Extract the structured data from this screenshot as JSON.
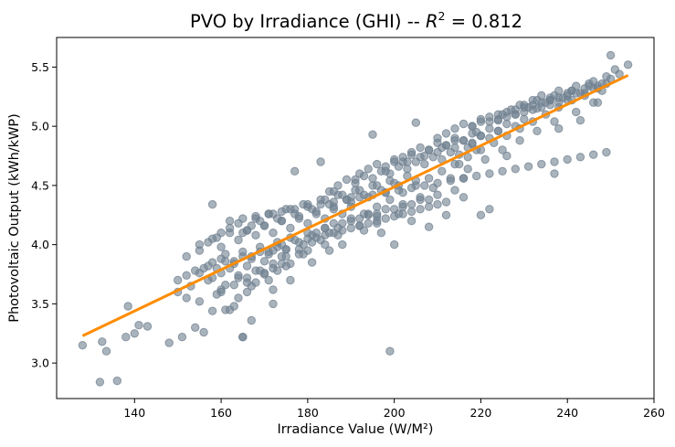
{
  "chart_data": {
    "type": "scatter",
    "title": "PVO by Irradiance (GHI) -- ",
    "title_r2_symbol": "R",
    "title_r2_exponent": "2",
    "title_r2_value": " = 0.812",
    "xlabel": "Irradiance Value (W/M²)",
    "ylabel": "Photovoltaic Output (kWh/kWP)",
    "xlim": [
      122,
      260
    ],
    "ylim": [
      2.7,
      5.75
    ],
    "x_ticks": [
      140,
      160,
      180,
      200,
      220,
      240,
      260
    ],
    "y_ticks": [
      3.0,
      3.5,
      4.0,
      4.5,
      5.0,
      5.5
    ],
    "grid": false,
    "point_color": "#708090",
    "fit_color": "#ff8c00",
    "fit_line": {
      "x": [
        128,
        254
      ],
      "y": [
        3.23,
        5.43
      ]
    },
    "points": {
      "x": [
        128,
        132,
        132.5,
        133.5,
        136,
        138,
        138.5,
        140,
        141,
        143,
        148,
        151,
        154,
        156,
        158,
        162,
        163,
        165,
        167,
        172,
        150,
        152,
        153,
        155,
        157,
        159,
        160,
        161,
        164,
        166,
        168,
        170,
        171,
        173,
        175,
        158,
        160,
        162,
        164,
        166,
        168,
        170,
        172,
        174,
        176,
        178,
        180,
        156,
        158,
        160,
        161,
        163,
        165,
        167,
        169,
        171,
        173,
        175,
        177,
        179,
        181,
        183,
        185,
        150,
        152,
        154,
        155,
        157,
        159,
        161,
        163,
        165,
        167,
        169,
        171,
        173,
        175,
        155,
        157,
        159,
        160,
        162,
        164,
        166,
        168,
        170,
        172,
        174,
        176,
        178,
        180,
        182,
        184,
        186,
        188,
        190,
        158,
        160,
        162,
        164,
        166,
        168,
        170,
        172,
        174,
        176,
        178,
        180,
        182,
        184,
        186,
        188,
        190,
        192,
        194,
        196,
        198,
        200,
        165,
        167,
        169,
        171,
        173,
        175,
        177,
        179,
        181,
        183,
        185,
        187,
        189,
        191,
        193,
        195,
        197,
        199,
        201,
        203,
        205,
        172,
        174,
        176,
        178,
        180,
        182,
        184,
        186,
        188,
        190,
        192,
        194,
        196,
        198,
        200,
        202,
        204,
        206,
        208,
        210,
        180,
        182,
        184,
        186,
        188,
        190,
        192,
        194,
        196,
        198,
        200,
        202,
        204,
        206,
        208,
        210,
        212,
        214,
        216,
        185,
        187,
        189,
        191,
        193,
        195,
        197,
        199,
        201,
        203,
        205,
        207,
        209,
        211,
        213,
        215,
        217,
        219,
        192,
        194,
        196,
        198,
        200,
        202,
        204,
        206,
        208,
        210,
        212,
        214,
        216,
        218,
        220,
        222,
        224,
        200,
        202,
        204,
        206,
        208,
        210,
        212,
        214,
        216,
        218,
        220,
        222,
        224,
        226,
        228,
        230,
        210,
        212,
        214,
        216,
        218,
        220,
        222,
        224,
        226,
        228,
        230,
        232,
        234,
        236,
        238,
        240,
        218,
        220,
        222,
        224,
        226,
        228,
        230,
        232,
        234,
        236,
        238,
        240,
        242,
        244,
        246,
        248,
        225,
        227,
        229,
        231,
        233,
        235,
        237,
        239,
        241,
        243,
        245,
        247,
        249,
        230,
        232,
        234,
        236,
        238,
        240,
        242,
        244,
        246,
        248,
        250,
        252,
        254,
        160,
        163,
        166,
        169,
        172,
        175,
        178,
        181,
        184,
        187,
        190,
        193,
        196,
        199,
        202,
        205,
        208,
        211,
        214,
        217,
        220,
        223,
        226,
        229,
        232,
        235,
        238,
        241,
        244,
        247,
        162,
        165,
        168,
        171,
        174,
        177,
        180,
        183,
        186,
        189,
        192,
        195,
        198,
        201,
        204,
        207,
        210,
        213,
        216,
        219,
        222,
        225,
        228,
        231,
        234,
        237,
        240,
        243,
        246,
        249,
        165,
        199,
        161,
        164,
        167,
        152,
        155,
        158,
        177,
        183,
        195,
        205,
        215,
        220,
        222,
        237,
        216,
        218,
        190,
        194,
        197,
        200,
        204,
        208,
        212,
        226,
        238,
        243,
        247,
        250,
        172,
        176,
        181,
        185,
        188,
        193,
        196,
        201,
        186,
        191,
        198,
        203,
        207,
        211,
        214,
        219,
        224,
        228,
        233,
        236,
        241,
        245,
        249,
        251,
        166,
        170,
        174,
        179,
        184,
        187,
        192,
        196,
        202,
        206,
        209,
        213,
        217,
        221,
        225,
        229,
        233,
        237,
        242,
        246
      ],
      "y": [
        3.15,
        2.84,
        3.18,
        3.1,
        2.85,
        3.22,
        3.48,
        3.25,
        3.32,
        3.31,
        3.17,
        3.22,
        3.3,
        3.26,
        3.44,
        3.45,
        3.48,
        3.22,
        3.36,
        3.5,
        3.6,
        3.55,
        3.65,
        3.52,
        3.7,
        3.58,
        3.62,
        3.66,
        3.72,
        3.6,
        3.68,
        3.75,
        3.7,
        3.78,
        3.82,
        3.72,
        3.76,
        3.8,
        3.74,
        3.82,
        3.78,
        3.86,
        3.8,
        3.9,
        3.84,
        3.92,
        3.95,
        3.8,
        3.85,
        3.88,
        3.92,
        3.86,
        3.94,
        3.9,
        3.98,
        3.94,
        4.02,
        3.96,
        4.04,
        4.0,
        4.08,
        4.04,
        4.1,
        3.7,
        3.74,
        3.78,
        3.76,
        3.82,
        3.8,
        3.86,
        3.84,
        3.9,
        3.88,
        3.94,
        3.92,
        3.98,
        3.96,
        3.95,
        4.02,
        4.06,
        3.98,
        4.1,
        4.04,
        4.12,
        4.08,
        4.16,
        4.1,
        4.2,
        4.14,
        4.22,
        4.18,
        4.26,
        4.22,
        4.3,
        4.26,
        4.32,
        4.05,
        4.1,
        4.14,
        4.18,
        4.12,
        4.22,
        4.16,
        4.26,
        4.2,
        4.3,
        4.24,
        4.34,
        4.28,
        4.38,
        4.32,
        4.42,
        4.36,
        4.46,
        4.4,
        4.5,
        4.44,
        4.52,
        4.1,
        4.16,
        4.2,
        4.26,
        4.22,
        4.3,
        4.26,
        4.34,
        4.3,
        4.38,
        4.34,
        4.42,
        4.38,
        4.46,
        4.42,
        4.5,
        4.46,
        4.54,
        4.5,
        4.58,
        4.54,
        3.95,
        4.0,
        4.06,
        4.02,
        4.1,
        4.06,
        4.14,
        4.1,
        4.18,
        4.14,
        4.22,
        4.18,
        4.26,
        4.22,
        4.3,
        4.26,
        4.34,
        4.3,
        4.38,
        4.34,
        4.05,
        4.1,
        4.14,
        4.18,
        4.12,
        4.22,
        4.16,
        4.26,
        4.2,
        4.3,
        4.24,
        4.34,
        4.28,
        4.38,
        4.32,
        4.42,
        4.36,
        4.46,
        4.4,
        4.45,
        4.5,
        4.55,
        4.52,
        4.58,
        4.56,
        4.62,
        4.6,
        4.66,
        4.64,
        4.7,
        4.68,
        4.74,
        4.72,
        4.78,
        4.76,
        4.82,
        4.8,
        4.6,
        4.64,
        4.68,
        4.66,
        4.72,
        4.7,
        4.76,
        4.74,
        4.8,
        4.78,
        4.84,
        4.82,
        4.88,
        4.86,
        4.92,
        4.9,
        4.96,
        4.7,
        4.74,
        4.78,
        4.82,
        4.8,
        4.86,
        4.84,
        4.9,
        4.88,
        4.94,
        4.92,
        4.98,
        4.96,
        5.02,
        5.0,
        5.06,
        4.9,
        4.94,
        4.98,
        5.02,
        5.0,
        5.06,
        5.04,
        5.1,
        5.08,
        5.14,
        5.12,
        5.18,
        5.16,
        5.22,
        5.2,
        5.26,
        5.0,
        5.04,
        5.08,
        5.06,
        5.12,
        5.1,
        5.16,
        5.14,
        5.2,
        5.18,
        5.24,
        5.22,
        5.28,
        5.26,
        5.32,
        5.3,
        5.1,
        5.14,
        5.18,
        5.16,
        5.22,
        5.2,
        5.26,
        5.24,
        5.3,
        5.28,
        5.34,
        5.32,
        5.36,
        5.18,
        5.22,
        5.26,
        5.24,
        5.3,
        5.28,
        5.34,
        5.32,
        5.38,
        5.36,
        5.4,
        5.44,
        5.52,
        3.6,
        3.66,
        3.72,
        3.78,
        3.84,
        3.9,
        3.96,
        4.02,
        4.08,
        4.14,
        4.2,
        4.26,
        4.32,
        4.38,
        4.44,
        4.5,
        4.56,
        4.62,
        4.68,
        4.74,
        4.8,
        4.86,
        4.92,
        4.98,
        5.04,
        5.1,
        5.16,
        5.22,
        5.28,
        5.34,
        4.2,
        4.22,
        4.24,
        4.26,
        4.28,
        4.3,
        4.32,
        4.34,
        4.36,
        4.38,
        4.4,
        4.42,
        4.44,
        4.46,
        4.48,
        4.5,
        4.52,
        4.54,
        4.56,
        4.58,
        4.6,
        4.62,
        4.64,
        4.66,
        4.68,
        4.7,
        4.72,
        4.74,
        4.76,
        4.78,
        3.22,
        3.1,
        3.45,
        3.55,
        3.65,
        3.9,
        4.0,
        4.34,
        4.62,
        4.7,
        4.93,
        5.03,
        4.68,
        4.25,
        4.3,
        4.6,
        4.56,
        4.85,
        4.4,
        4.25,
        4.1,
        4.0,
        4.2,
        4.15,
        4.25,
        4.75,
        4.98,
        5.05,
        5.2,
        5.6,
        3.62,
        3.7,
        3.85,
        3.95,
        4.0,
        4.12,
        4.18,
        4.26,
        4.45,
        4.55,
        4.62,
        4.7,
        4.75,
        4.82,
        4.88,
        4.95,
        5.05,
        5.1,
        5.15,
        5.22,
        5.3,
        5.36,
        5.42,
        5.48,
        3.68,
        3.76,
        3.84,
        3.92,
        4.0,
        4.08,
        4.16,
        4.24,
        4.32,
        4.4,
        4.48,
        4.56,
        4.64,
        4.72,
        4.8,
        4.88,
        4.96,
        5.04,
        5.12,
        5.2
      ]
    }
  }
}
